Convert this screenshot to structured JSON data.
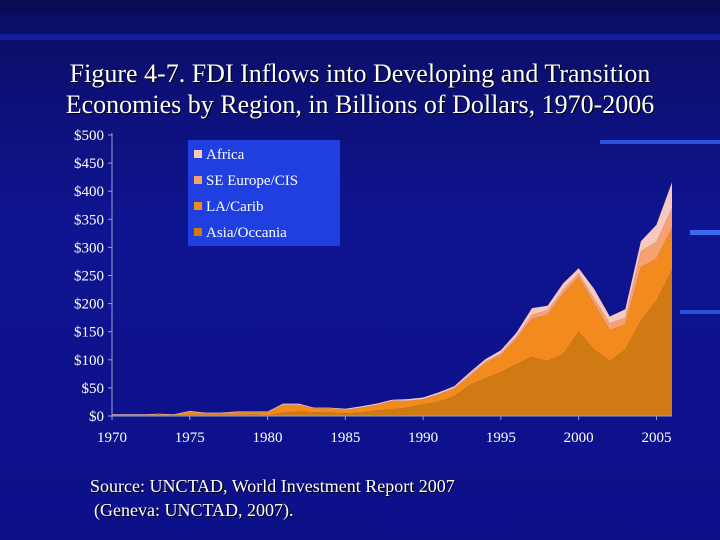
{
  "title": {
    "line1": "Figure 4-7. FDI Inflows into Developing and Transition",
    "line2": "Economies by Region, in Billions of Dollars, 1970-2006"
  },
  "source": {
    "line1": "Source: UNCTAD, World Investment Report 2007",
    "line2": "(Geneva: UNCTAD, 2007)."
  },
  "colors": {
    "background": "#0c1089",
    "legend_bg": "#1f3fe0",
    "Africa": "#f6c9bc",
    "SE Europe/CIS": "#f7a070",
    "LA/Carib": "#f28a1e",
    "Asia/Oceania": "#cf7a12",
    "axis": "#9aa0c8"
  },
  "chart_data": {
    "type": "area",
    "stacked": true,
    "x": [
      1970,
      1971,
      1972,
      1973,
      1974,
      1975,
      1976,
      1977,
      1978,
      1979,
      1980,
      1981,
      1982,
      1983,
      1984,
      1985,
      1986,
      1987,
      1988,
      1989,
      1990,
      1991,
      1992,
      1993,
      1994,
      1995,
      1996,
      1997,
      1998,
      1999,
      2000,
      2001,
      2002,
      2003,
      2004,
      2005,
      2006
    ],
    "x_ticks": [
      1970,
      1975,
      1980,
      1985,
      1990,
      1995,
      2000,
      2005
    ],
    "x_tick_labels": [
      "1970",
      "1975",
      "1980",
      "1985",
      "1990",
      "1995",
      "2000",
      "2005"
    ],
    "y_ticks": [
      0,
      50,
      100,
      150,
      200,
      250,
      300,
      350,
      400,
      450,
      500
    ],
    "y_tick_labels": [
      "$0",
      "$50",
      "$100",
      "$150",
      "$200",
      "$250",
      "$300",
      "$350",
      "$400",
      "$450",
      "$500"
    ],
    "ylim": [
      0,
      500
    ],
    "xlim": [
      1970,
      2006
    ],
    "legend_position": "top-left",
    "series": [
      {
        "name": "Asia/Occania",
        "values": [
          1,
          1,
          1,
          2,
          1,
          2,
          2,
          2,
          2,
          3,
          1,
          6,
          8,
          7,
          6,
          5,
          6,
          10,
          12,
          15,
          21,
          25,
          35,
          55,
          67,
          78,
          92,
          105,
          98,
          110,
          150,
          118,
          98,
          118,
          170,
          205,
          260
        ]
      },
      {
        "name": "LA/Carib",
        "values": [
          1,
          1,
          1,
          1,
          1,
          6,
          3,
          3,
          5,
          4,
          6,
          14,
          12,
          7,
          8,
          6,
          9,
          10,
          15,
          12,
          9,
          13,
          13,
          15,
          27,
          30,
          45,
          68,
          82,
          108,
          97,
          82,
          55,
          45,
          95,
          75,
          75
        ]
      },
      {
        "name": "SE Europe/CIS",
        "values": [
          0,
          0,
          0,
          0,
          0,
          0,
          0,
          0,
          0,
          0,
          0,
          0,
          0,
          0,
          0,
          0,
          0,
          0,
          0,
          0,
          0,
          1,
          2,
          4,
          3,
          4,
          5,
          7,
          8,
          7,
          7,
          9,
          12,
          12,
          28,
          30,
          35
        ]
      },
      {
        "name": "Africa",
        "values": [
          1,
          1,
          1,
          1,
          1,
          1,
          1,
          1,
          1,
          1,
          1,
          2,
          2,
          1,
          1,
          2,
          2,
          2,
          2,
          3,
          3,
          3,
          3,
          4,
          4,
          5,
          6,
          12,
          8,
          11,
          9,
          17,
          12,
          15,
          18,
          30,
          46
        ]
      }
    ]
  }
}
